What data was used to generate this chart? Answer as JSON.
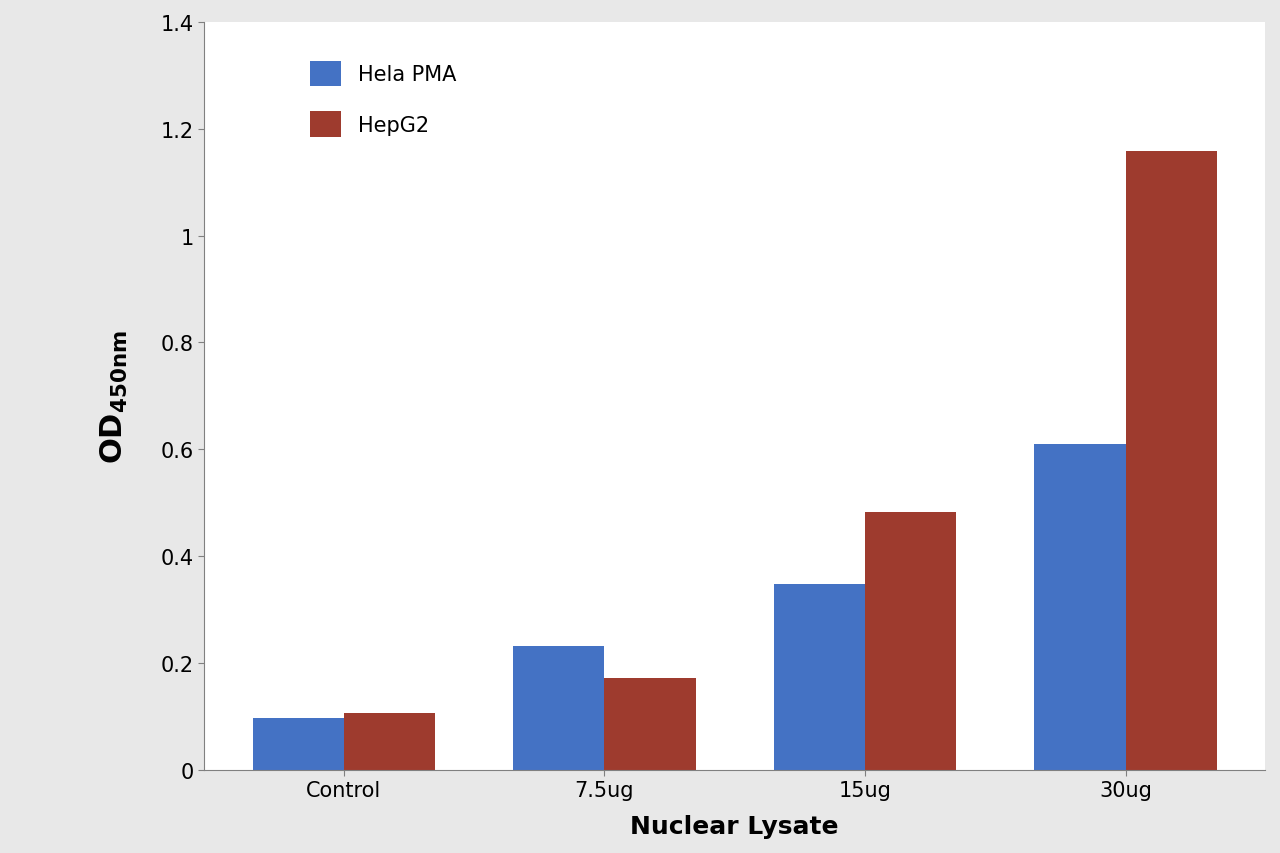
{
  "categories": [
    "Control",
    "7.5ug",
    "15ug",
    "30ug"
  ],
  "hela_pma": [
    0.097,
    0.232,
    0.348,
    0.61
  ],
  "hepg2": [
    0.107,
    0.172,
    0.483,
    1.158
  ],
  "hela_color": "#4472C4",
  "hepg2_color": "#9E3B2E",
  "xlabel": "Nuclear Lysate",
  "ylim": [
    0,
    1.4
  ],
  "yticks": [
    0,
    0.2,
    0.4,
    0.6,
    0.8,
    1.0,
    1.2,
    1.4
  ],
  "legend_hela": "Hela PMA",
  "legend_hepg2": "HepG2",
  "bar_width": 0.35,
  "axis_label_fontsize": 18,
  "tick_fontsize": 15,
  "legend_fontsize": 15,
  "figure_facecolor": "#e8e8e8",
  "axes_facecolor": "#ffffff"
}
